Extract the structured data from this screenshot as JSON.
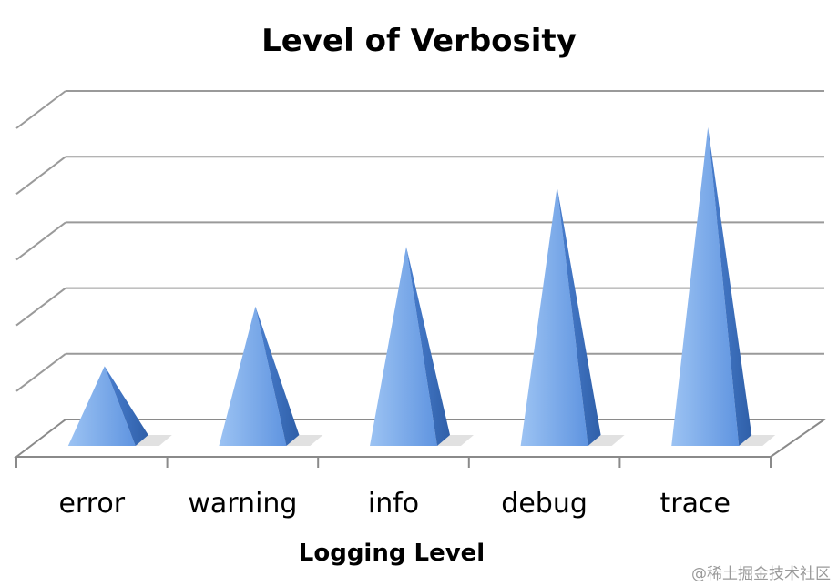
{
  "chart_data": {
    "type": "bar",
    "style": "3d-pyramid",
    "title": "Level of Verbosity",
    "xlabel": "Logging Level",
    "ylabel": "",
    "categories": [
      "error",
      "warning",
      "info",
      "debug",
      "trace"
    ],
    "values": [
      1,
      2,
      3,
      4,
      5
    ],
    "ylim": [
      0,
      5.5
    ],
    "grid": true,
    "legend": "none",
    "colors": {
      "face_light": "#8db8f0",
      "face_mid": "#5a8fde",
      "face_dark": "#2f5fa8",
      "shadow": "#c8c8c8"
    }
  },
  "watermark": "@稀土掘金技术社区"
}
